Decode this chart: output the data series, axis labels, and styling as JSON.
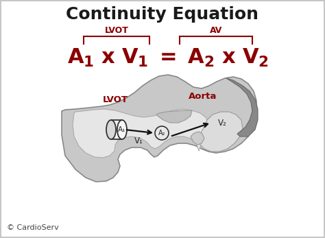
{
  "title": "Continuity Equation",
  "title_fontsize": 18,
  "title_fontweight": "bold",
  "title_color": "#1a1a1a",
  "eq_color": "#8b0000",
  "eq_fontsize": 22,
  "lvot_label": "LVOT",
  "av_label": "AV",
  "bracket_color": "#8b0000",
  "label_color": "#8b0000",
  "bg_color": "#ffffff",
  "border_color": "#bbbbbb",
  "cardioserv_text": "© CardioServ",
  "cardioserv_fontsize": 8,
  "cardioserv_color": "#444444",
  "aorta_label": "Aorta",
  "lvot_diagram_label": "LVOT",
  "v1_label": "V₁",
  "v2_label": "V₂",
  "a1_label": "A₁",
  "a2_label": "A₂",
  "diagram_label_color": "#8b0000",
  "diagram_arrow_color": "#111111"
}
